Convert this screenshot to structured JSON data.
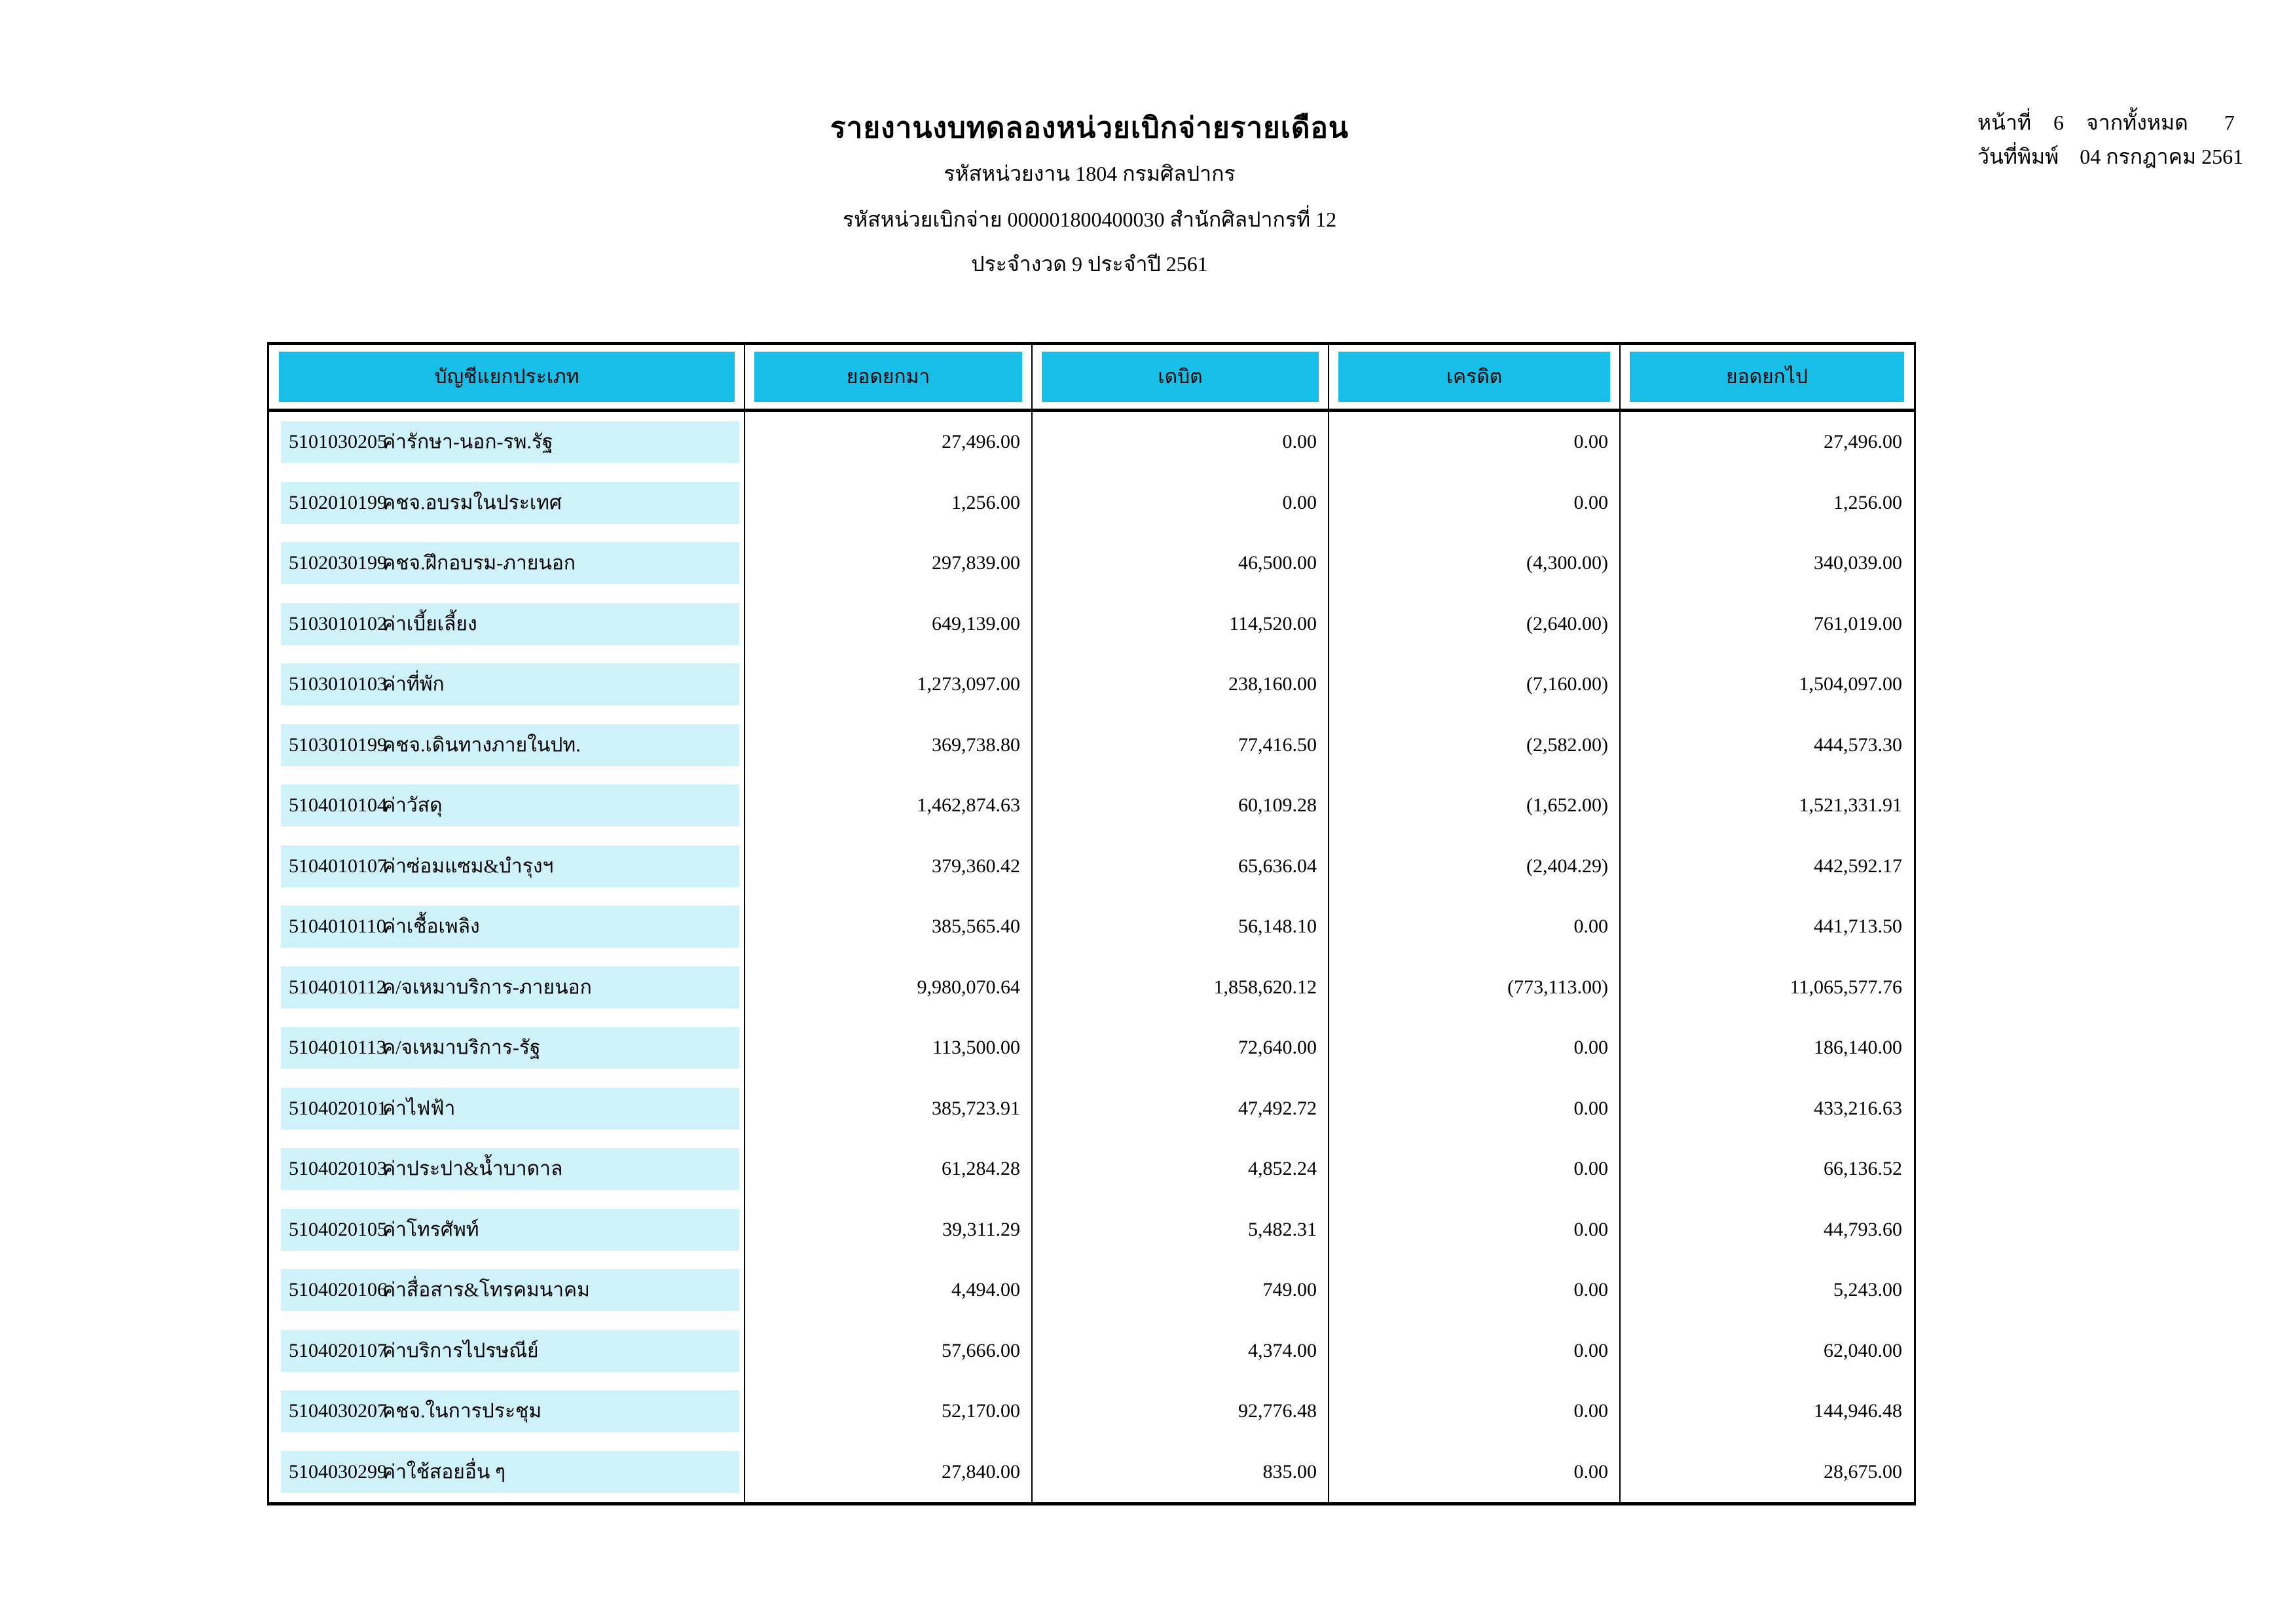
{
  "page_header": {
    "title": "รายงานงบทดลองหน่วยเบิกจ่ายรายเดือน",
    "agency_line": "รหัสหน่วยงาน 1804 กรมศิลปากร",
    "disbursement_line": "รหัสหน่วยเบิกจ่าย 000001800400030 สำนักศิลปากรที่ 12",
    "period_line": "ประจำงวด 9 ประจำปี 2561"
  },
  "page_info": {
    "page_label": "หน้าที่",
    "page_number": "6",
    "of_total_label": "จากทั้งหมด",
    "total_pages": "7",
    "print_date_label": "วันที่พิมพ์",
    "print_date": "04 กรกฎาคม 2561"
  },
  "table": {
    "columns": [
      "บัญชีแยกประเภท",
      "ยอดยกมา",
      "เดบิต",
      "เครดิต",
      "ยอดยกไป"
    ],
    "rows": [
      {
        "code": "5101030205",
        "name": "ค่ารักษา-นอก-รพ.รัฐ",
        "opening": "27,496.00",
        "debit": "0.00",
        "credit": "0.00",
        "closing": "27,496.00"
      },
      {
        "code": "5102010199",
        "name": "คชจ.อบรมในประเทศ",
        "opening": "1,256.00",
        "debit": "0.00",
        "credit": "0.00",
        "closing": "1,256.00"
      },
      {
        "code": "5102030199",
        "name": "คชจ.ฝึกอบรม-ภายนอก",
        "opening": "297,839.00",
        "debit": "46,500.00",
        "credit": "(4,300.00)",
        "closing": "340,039.00"
      },
      {
        "code": "5103010102",
        "name": "ค่าเบี้ยเลี้ยง",
        "opening": "649,139.00",
        "debit": "114,520.00",
        "credit": "(2,640.00)",
        "closing": "761,019.00"
      },
      {
        "code": "5103010103",
        "name": "ค่าที่พัก",
        "opening": "1,273,097.00",
        "debit": "238,160.00",
        "credit": "(7,160.00)",
        "closing": "1,504,097.00"
      },
      {
        "code": "5103010199",
        "name": "คชจ.เดินทางภายในปท.",
        "opening": "369,738.80",
        "debit": "77,416.50",
        "credit": "(2,582.00)",
        "closing": "444,573.30"
      },
      {
        "code": "5104010104",
        "name": "ค่าวัสดุ",
        "opening": "1,462,874.63",
        "debit": "60,109.28",
        "credit": "(1,652.00)",
        "closing": "1,521,331.91"
      },
      {
        "code": "5104010107",
        "name": "ค่าซ่อมแซม&บำรุงฯ",
        "opening": "379,360.42",
        "debit": "65,636.04",
        "credit": "(2,404.29)",
        "closing": "442,592.17"
      },
      {
        "code": "5104010110",
        "name": "ค่าเชื้อเพลิง",
        "opening": "385,565.40",
        "debit": "56,148.10",
        "credit": "0.00",
        "closing": "441,713.50"
      },
      {
        "code": "5104010112",
        "name": "ค/จเหมาบริการ-ภายนอก",
        "opening": "9,980,070.64",
        "debit": "1,858,620.12",
        "credit": "(773,113.00)",
        "closing": "11,065,577.76"
      },
      {
        "code": "5104010113",
        "name": "ค/จเหมาบริการ-รัฐ",
        "opening": "113,500.00",
        "debit": "72,640.00",
        "credit": "0.00",
        "closing": "186,140.00"
      },
      {
        "code": "5104020101",
        "name": "ค่าไฟฟ้า",
        "opening": "385,723.91",
        "debit": "47,492.72",
        "credit": "0.00",
        "closing": "433,216.63"
      },
      {
        "code": "5104020103",
        "name": "ค่าประปา&น้ำบาดาล",
        "opening": "61,284.28",
        "debit": "4,852.24",
        "credit": "0.00",
        "closing": "66,136.52"
      },
      {
        "code": "5104020105",
        "name": "ค่าโทรศัพท์",
        "opening": "39,311.29",
        "debit": "5,482.31",
        "credit": "0.00",
        "closing": "44,793.60"
      },
      {
        "code": "5104020106",
        "name": "ค่าสื่อสาร&โทรคมนาคม",
        "opening": "4,494.00",
        "debit": "749.00",
        "credit": "0.00",
        "closing": "5,243.00"
      },
      {
        "code": "5104020107",
        "name": "ค่าบริการไปรษณีย์",
        "opening": "57,666.00",
        "debit": "4,374.00",
        "credit": "0.00",
        "closing": "62,040.00"
      },
      {
        "code": "5104030207",
        "name": "คชจ.ในการประชุม",
        "opening": "52,170.00",
        "debit": "92,776.48",
        "credit": "0.00",
        "closing": "144,946.48"
      },
      {
        "code": "5104030299",
        "name": "ค่าใช้สอยอื่น ๆ",
        "opening": "27,840.00",
        "debit": "835.00",
        "credit": "0.00",
        "closing": "28,675.00"
      }
    ]
  },
  "colors": {
    "header_fill": "#17BEE8",
    "row_fill": "#CFF2FA"
  }
}
